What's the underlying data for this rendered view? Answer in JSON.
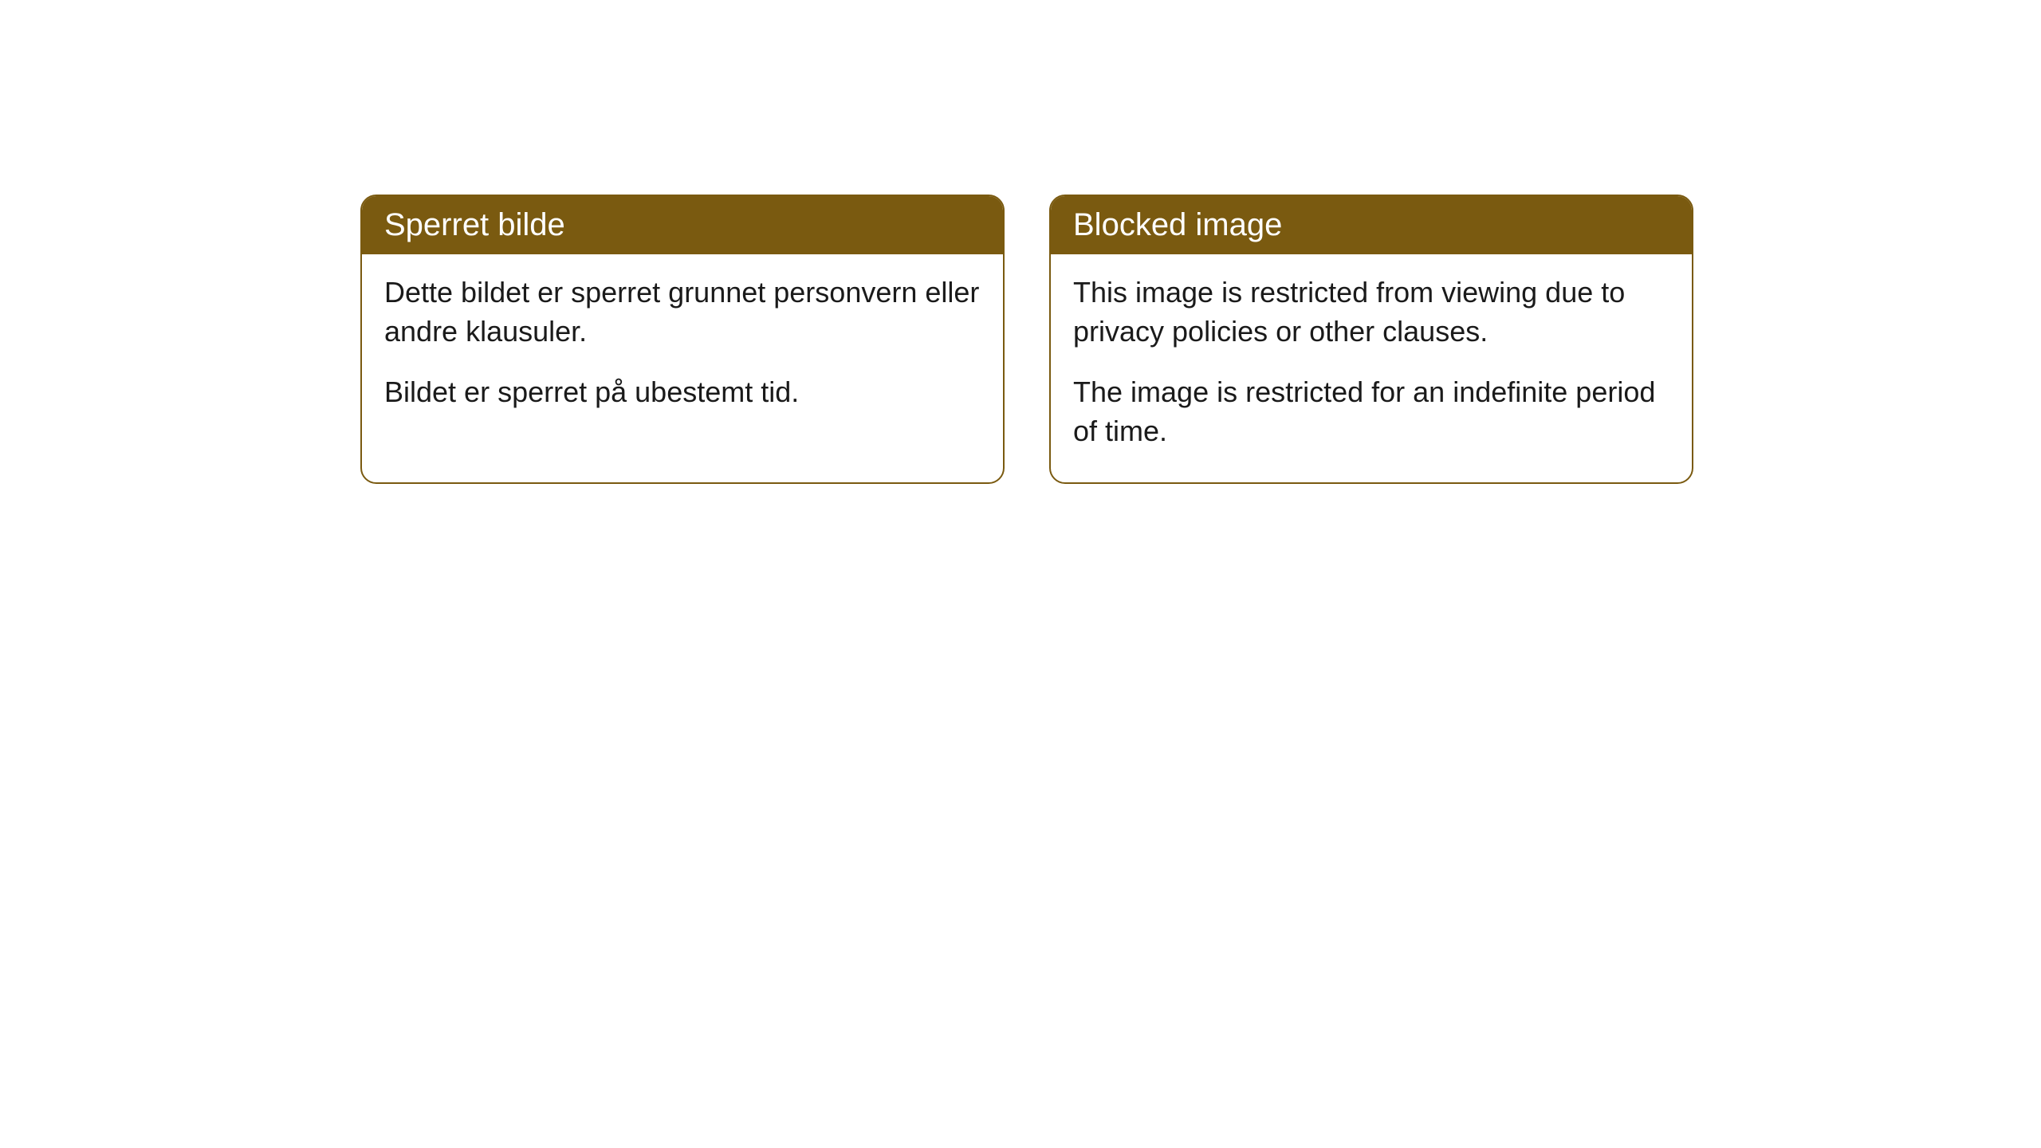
{
  "cards": [
    {
      "title": "Sperret bilde",
      "paragraph1": "Dette bildet er sperret grunnet personvern eller andre klausuler.",
      "paragraph2": "Bildet er sperret på ubestemt tid."
    },
    {
      "title": "Blocked image",
      "paragraph1": "This image is restricted from viewing due to privacy policies or other clauses.",
      "paragraph2": "The image is restricted for an indefinite period of time."
    }
  ],
  "style": {
    "header_bg": "#7a5a10",
    "header_text": "#ffffff",
    "border_color": "#7a5a10",
    "body_bg": "#ffffff",
    "body_text": "#1a1a1a",
    "border_radius": 20,
    "title_fontsize": 40,
    "body_fontsize": 36
  }
}
